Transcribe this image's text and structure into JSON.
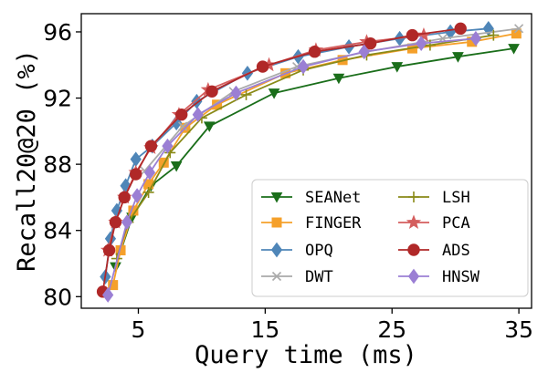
{
  "chart_data": {
    "type": "line",
    "title": "",
    "xlabel": "Query time (ms)",
    "ylabel": "Recall20@20 (%)",
    "xlim": [
      0.5,
      36
    ],
    "ylim": [
      79.3,
      97.1
    ],
    "xticks": [
      5,
      15,
      25,
      35
    ],
    "yticks": [
      80,
      84,
      88,
      92,
      96
    ],
    "legend_position": "lower-right",
    "grid": false,
    "series": [
      {
        "name": "SEANet",
        "color": "#1a6e1a",
        "marker": "triangle-down",
        "x": [
          3.2,
          4.5,
          6.0,
          8.0,
          10.6,
          15.7,
          20.8,
          25.4,
          30.2,
          34.6
        ],
        "y": [
          81.8,
          84.8,
          86.7,
          87.9,
          90.3,
          92.3,
          93.2,
          93.9,
          94.5,
          95.0
        ]
      },
      {
        "name": "FINGER",
        "color": "#f5a02a",
        "marker": "square",
        "x": [
          3.0,
          3.6,
          4.6,
          5.8,
          7.0,
          8.7,
          11.2,
          16.6,
          21.1,
          26.6,
          31.3,
          34.8
        ],
        "y": [
          80.7,
          82.8,
          85.2,
          86.8,
          88.1,
          90.2,
          91.6,
          93.5,
          94.3,
          95.0,
          95.4,
          95.9
        ]
      },
      {
        "name": "OPQ",
        "color": "#4f86b8",
        "marker": "diamond",
        "x": [
          2.4,
          2.8,
          3.3,
          4.0,
          4.8,
          6.1,
          8.0,
          9.6,
          13.6,
          17.6,
          21.6,
          25.6,
          29.6,
          32.6
        ],
        "y": [
          81.2,
          83.5,
          85.2,
          86.7,
          88.3,
          89.1,
          90.5,
          91.8,
          93.5,
          94.5,
          95.1,
          95.6,
          96.0,
          96.2
        ]
      },
      {
        "name": "DWT",
        "color": "#aaaaaa",
        "marker": "x",
        "x": [
          5.5,
          8.5,
          12.5,
          17.5,
          23.0,
          29.0,
          35.0
        ],
        "y": [
          87.6,
          90.3,
          92.4,
          93.9,
          94.8,
          95.6,
          96.2
        ]
      },
      {
        "name": "LSH",
        "color": "#8a8a18",
        "marker": "plus",
        "x": [
          3.3,
          4.2,
          5.8,
          7.5,
          10.0,
          13.5,
          18.0,
          23.0,
          28.0,
          33.0
        ],
        "y": [
          82.3,
          84.5,
          86.3,
          88.7,
          90.8,
          92.2,
          93.7,
          94.6,
          95.2,
          95.8
        ]
      },
      {
        "name": "PCA",
        "color": "#d45e5e",
        "marker": "star",
        "x": [
          2.6,
          3.2,
          3.9,
          4.8,
          6.0,
          8.2,
          10.5,
          15.3,
          19.0,
          23.0,
          27.5
        ],
        "y": [
          82.8,
          84.5,
          86.0,
          87.5,
          89.0,
          91.0,
          92.5,
          94.0,
          94.9,
          95.4,
          95.8
        ]
      },
      {
        "name": "ADS",
        "color": "#b02828",
        "marker": "circle",
        "x": [
          2.2,
          2.7,
          3.2,
          3.9,
          4.8,
          6.0,
          8.4,
          10.8,
          14.8,
          18.9,
          23.3,
          26.6,
          30.4
        ],
        "y": [
          80.3,
          82.8,
          84.5,
          86.0,
          87.4,
          89.1,
          91.0,
          92.4,
          93.9,
          94.8,
          95.3,
          95.8,
          96.2
        ]
      },
      {
        "name": "HNSW",
        "color": "#9b7fd4",
        "marker": "diamond",
        "x": [
          2.6,
          4.1,
          4.9,
          5.9,
          7.3,
          9.7,
          12.7,
          18.0,
          22.8,
          27.3,
          31.6
        ],
        "y": [
          80.1,
          84.5,
          86.1,
          87.5,
          89.1,
          91.0,
          92.3,
          93.9,
          94.8,
          95.3,
          95.6
        ]
      }
    ]
  }
}
